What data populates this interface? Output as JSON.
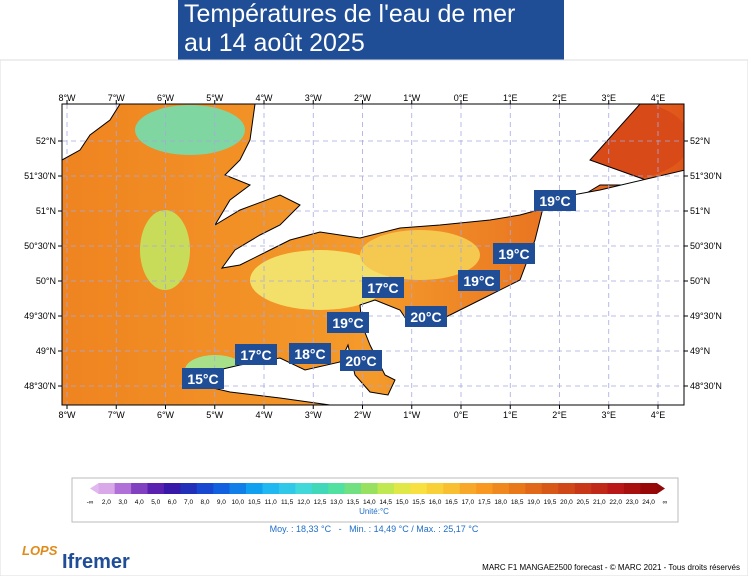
{
  "title": [
    "Températures de l'eau de mer",
    "au 14 août 2025"
  ],
  "map": {
    "lon_labels": [
      "8°W",
      "7°W",
      "6°W",
      "5°W",
      "4°W",
      "3°W",
      "2°W",
      "1°W",
      "0°E",
      "1°E",
      "2°E",
      "3°E",
      "4°E"
    ],
    "lat_labels": [
      "52°N",
      "51°30'N",
      "51°N",
      "50°30'N",
      "50°N",
      "49°30'N",
      "49°N",
      "48°30'N"
    ],
    "temperature_labels": [
      "19°C",
      "19°C",
      "19°C",
      "17°C",
      "20°C",
      "19°C",
      "17°C",
      "18°C",
      "20°C",
      "15°C"
    ]
  },
  "legend": {
    "ticks": [
      "-∞",
      "2,0",
      "3,0",
      "4,0",
      "5,0",
      "6,0",
      "7,0",
      "8,0",
      "9,0",
      "10,0",
      "10,5",
      "11,0",
      "11,5",
      "12,0",
      "12,5",
      "13,0",
      "13,5",
      "14,0",
      "14,5",
      "15,0",
      "15,5",
      "16,0",
      "16,5",
      "17,0",
      "17,5",
      "18,0",
      "18,5",
      "19,0",
      "19,5",
      "20,0",
      "20,5",
      "21,0",
      "22,0",
      "23,0",
      "24,0",
      "∞"
    ],
    "unit": "Unité:°C"
  },
  "stats": "Moy. : 18,33 °C   -   Min. : 14,49 °C / Max. : 25,17 °C",
  "footer": "MARC F1 MANGAE2500 forecast - © MARC 2021 - Tous droits réservés",
  "logos": [
    "LOPS",
    "Ifremer"
  ]
}
